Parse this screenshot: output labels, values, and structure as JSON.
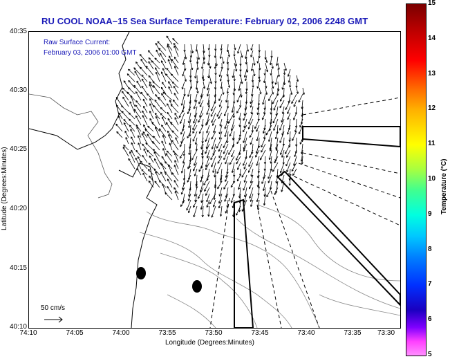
{
  "title": "RU COOL  NOAA–15  Sea Surface Temperature:  February 02, 2006 2248 GMT",
  "overlay": {
    "line1": "Raw Surface Current:",
    "line2": "February 03, 2006 01:00 GMT"
  },
  "axes": {
    "xlabel": "Longitude (Degrees:Minutes)",
    "ylabel": "Latitude (Degrees:Minutes)",
    "xticks": [
      "74:10",
      "74:05",
      "74:00",
      "73:55",
      "73:50",
      "73:45",
      "73:40",
      "73:35",
      "73:30"
    ],
    "yticks": [
      "40:35",
      "40:30",
      "40:25",
      "40:20",
      "40:15",
      "40:10"
    ]
  },
  "scale": {
    "label": "50 cm/s"
  },
  "colorbar": {
    "label": "Temperature (°C)",
    "ticks": [
      "15",
      "14",
      "13",
      "12",
      "11",
      "10",
      "9",
      "8",
      "7",
      "6",
      "5"
    ],
    "min": 5,
    "max": 15
  }
}
